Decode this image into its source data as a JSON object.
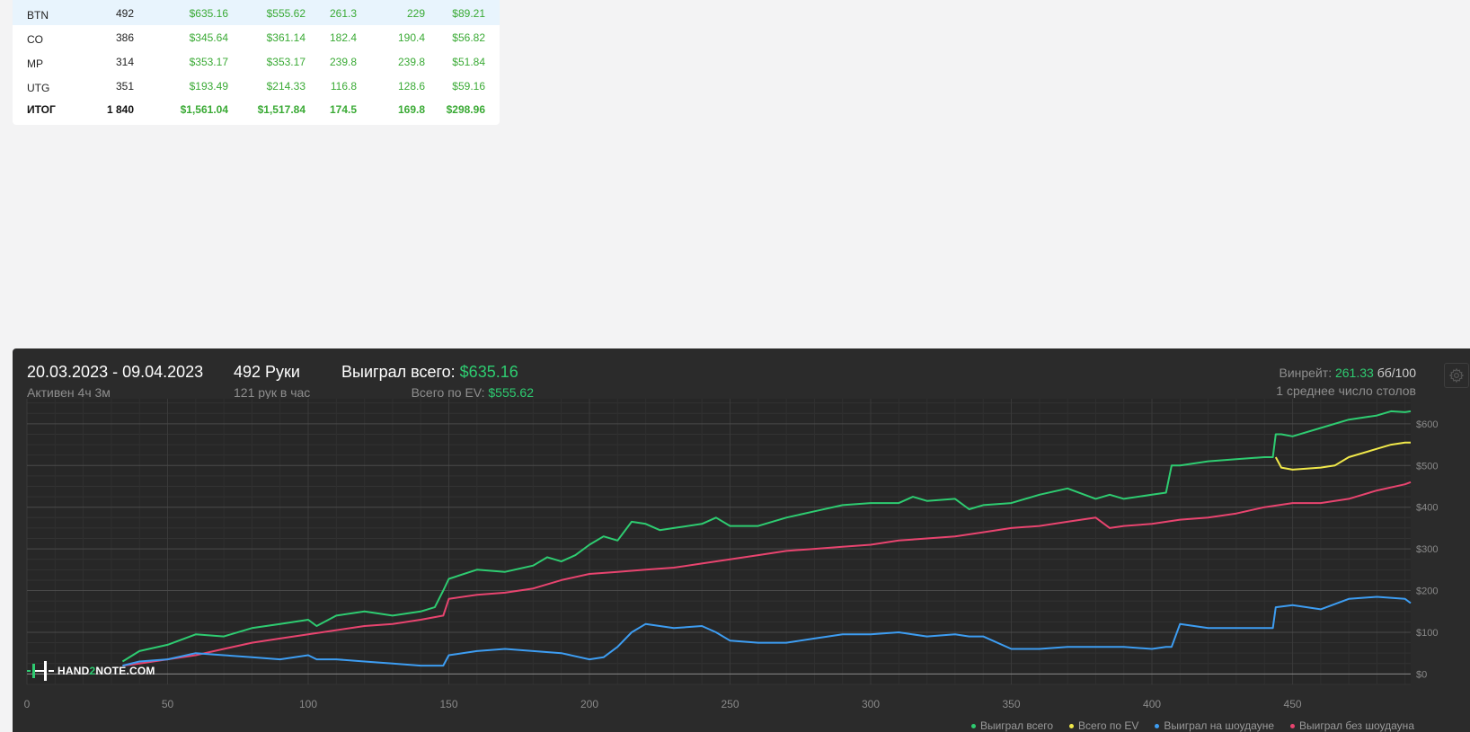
{
  "table": {
    "rows": [
      {
        "pos": "BTN",
        "hands": "492",
        "won": "$635.16",
        "ev": "$555.62",
        "bb100": "261.3",
        "ev_bb100": "229",
        "rake": "$89.21",
        "highlighted": true
      },
      {
        "pos": "CO",
        "hands": "386",
        "won": "$345.64",
        "ev": "$361.14",
        "bb100": "182.4",
        "ev_bb100": "190.4",
        "rake": "$56.82"
      },
      {
        "pos": "MP",
        "hands": "314",
        "won": "$353.17",
        "ev": "$353.17",
        "bb100": "239.8",
        "ev_bb100": "239.8",
        "rake": "$51.84"
      },
      {
        "pos": "UTG",
        "hands": "351",
        "won": "$193.49",
        "ev": "$214.33",
        "bb100": "116.8",
        "ev_bb100": "128.6",
        "rake": "$59.16"
      }
    ],
    "total": {
      "pos": "ИТОГ",
      "hands": "1 840",
      "won": "$1,561.04",
      "ev": "$1,517.84",
      "bb100": "174.5",
      "ev_bb100": "169.8",
      "rake": "$298.96"
    }
  },
  "stats": {
    "date_range": "20.03.2023 - 09.04.2023",
    "active_time": "Активен 4ч 3м",
    "hands": "492 Руки",
    "hands_per_hour": "121 рук в час",
    "won_label": "Выиграл всего:",
    "won_value": "$635.16",
    "ev_label": "Всего по EV:",
    "ev_value": "$555.62",
    "winrate_label": "Винрейт:",
    "winrate_value": "261.33",
    "winrate_unit": "бб/100",
    "avg_tables": "1 среднее число столов"
  },
  "logo": {
    "text_a": "HAND",
    "text_b": "2",
    "text_c": "NOTE.COM"
  },
  "colors": {
    "won": "#2ecc71",
    "ev": "#f1e94a",
    "showdown": "#3d9df2",
    "non_showdown": "#e8446f"
  },
  "icons": {
    "settings": "gear-icon",
    "logo": "hand2note-logo-icon"
  },
  "chart_data": {
    "type": "line",
    "xlim": [
      0,
      492
    ],
    "ylim": [
      -25,
      660
    ],
    "x_ticks": [
      0,
      50,
      100,
      150,
      200,
      250,
      300,
      350,
      400,
      450
    ],
    "y_ticks": [
      0,
      100,
      200,
      300,
      400,
      500,
      600
    ],
    "y_tick_labels": [
      "$0",
      "$100",
      "$200",
      "$300",
      "$400",
      "$500",
      "$600"
    ],
    "grid": true,
    "legend_position": "bottom-right",
    "series": [
      {
        "name": "Выиграл всего",
        "color": "#2ecc71",
        "x": [
          34,
          40,
          50,
          60,
          70,
          80,
          90,
          100,
          103,
          110,
          120,
          130,
          140,
          145,
          148,
          150,
          160,
          170,
          180,
          185,
          190,
          195,
          200,
          205,
          210,
          215,
          220,
          225,
          230,
          240,
          245,
          250,
          260,
          270,
          280,
          290,
          300,
          310,
          315,
          320,
          330,
          335,
          340,
          350,
          360,
          370,
          380,
          385,
          390,
          400,
          405,
          407,
          410,
          420,
          430,
          440,
          443,
          444,
          446,
          450,
          460,
          470,
          480,
          485,
          490,
          492
        ],
        "y": [
          30,
          55,
          70,
          95,
          90,
          110,
          120,
          130,
          115,
          140,
          150,
          140,
          150,
          160,
          200,
          228,
          250,
          245,
          260,
          280,
          270,
          285,
          310,
          330,
          320,
          365,
          360,
          345,
          350,
          360,
          375,
          355,
          355,
          375,
          390,
          405,
          410,
          410,
          425,
          415,
          420,
          395,
          405,
          410,
          430,
          445,
          420,
          430,
          420,
          430,
          435,
          500,
          500,
          510,
          515,
          520,
          520,
          575,
          575,
          570,
          590,
          610,
          620,
          630,
          628,
          630
        ]
      },
      {
        "name": "Всего по EV",
        "color": "#f1e94a",
        "x": [
          444,
          446,
          450,
          460,
          465,
          470,
          480,
          485,
          490,
          492
        ],
        "y": [
          520,
          495,
          490,
          495,
          500,
          520,
          540,
          550,
          555,
          555
        ]
      },
      {
        "name": "Выиграл на шоудауне",
        "color": "#3d9df2",
        "x": [
          34,
          40,
          50,
          60,
          70,
          80,
          90,
          100,
          103,
          110,
          120,
          130,
          140,
          148,
          150,
          160,
          170,
          180,
          190,
          200,
          205,
          210,
          215,
          220,
          230,
          240,
          245,
          250,
          260,
          270,
          280,
          290,
          300,
          310,
          320,
          330,
          335,
          340,
          350,
          360,
          370,
          380,
          390,
          400,
          405,
          407,
          410,
          420,
          440,
          443,
          444,
          450,
          460,
          470,
          480,
          490,
          492
        ],
        "y": [
          20,
          30,
          35,
          50,
          45,
          40,
          35,
          45,
          35,
          35,
          30,
          25,
          20,
          20,
          45,
          55,
          60,
          55,
          50,
          35,
          40,
          65,
          100,
          120,
          110,
          115,
          100,
          80,
          75,
          75,
          85,
          95,
          95,
          100,
          90,
          95,
          90,
          90,
          60,
          60,
          65,
          65,
          65,
          60,
          65,
          65,
          120,
          110,
          110,
          110,
          160,
          165,
          155,
          180,
          185,
          180,
          170
        ]
      },
      {
        "name": "Выиграл без шоудауна",
        "color": "#e8446f",
        "x": [
          34,
          40,
          50,
          60,
          70,
          80,
          90,
          100,
          110,
          120,
          130,
          140,
          148,
          150,
          160,
          170,
          180,
          190,
          200,
          210,
          220,
          230,
          240,
          250,
          260,
          270,
          280,
          290,
          300,
          310,
          320,
          330,
          340,
          350,
          360,
          370,
          380,
          385,
          390,
          400,
          410,
          420,
          430,
          440,
          450,
          460,
          470,
          480,
          490,
          492
        ],
        "y": [
          20,
          25,
          35,
          45,
          60,
          75,
          85,
          95,
          105,
          115,
          120,
          130,
          140,
          180,
          190,
          195,
          205,
          225,
          240,
          245,
          250,
          255,
          265,
          275,
          285,
          295,
          300,
          305,
          310,
          320,
          325,
          330,
          340,
          350,
          355,
          365,
          375,
          350,
          355,
          360,
          370,
          375,
          385,
          400,
          410,
          410,
          420,
          440,
          455,
          460
        ]
      }
    ]
  }
}
